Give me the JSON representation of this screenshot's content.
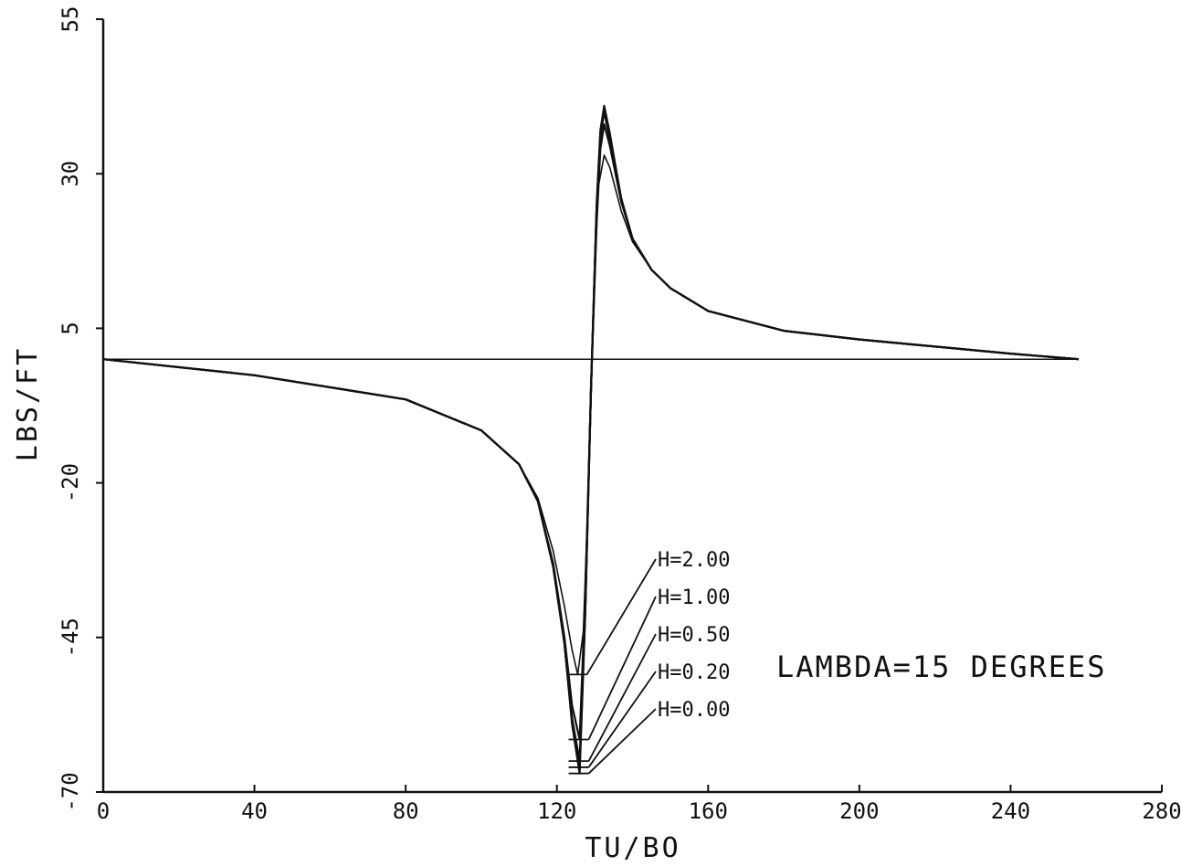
{
  "chart_data": {
    "type": "line",
    "xlabel": "TU/BO",
    "ylabel": "LBS/FT",
    "xlim": [
      0,
      280
    ],
    "ylim": [
      -70,
      55
    ],
    "xticks": [
      0,
      40,
      80,
      120,
      160,
      200,
      240,
      280
    ],
    "xtick_labels": [
      "0",
      "40",
      "80",
      "120",
      "160",
      "200",
      "240",
      "280"
    ],
    "yticks": [
      -70,
      -45,
      -20,
      5,
      30,
      55
    ],
    "ytick_labels": [
      "-70",
      "-45",
      "-20",
      "5",
      "30",
      "55"
    ],
    "annotation": "LAMBDA=15 DEGREES",
    "reference_line_y": 0,
    "grid": false,
    "series": [
      {
        "name": "H=2.00",
        "min_at": 125.5,
        "min_value": -51.0,
        "max_at": 132.5,
        "max_value": 33.0,
        "x": [
          0,
          40,
          80,
          100,
          110,
          115,
          119,
          122,
          124,
          125.5,
          127,
          128.5,
          130,
          131,
          132.5,
          134,
          137,
          140,
          145,
          150,
          160,
          180,
          200,
          240,
          258
        ],
        "y": [
          0,
          -2.6,
          -6.5,
          -11.5,
          -17,
          -22.5,
          -31,
          -40,
          -47,
          -51,
          -44,
          -18,
          15,
          28,
          33,
          31,
          24,
          19,
          14.5,
          11.5,
          7.8,
          4.6,
          3.2,
          0.9,
          0
        ]
      },
      {
        "name": "H=1.00",
        "min_at": 126.0,
        "min_value": -61.5,
        "max_at": 132.5,
        "max_value": 38.0,
        "x": [
          0,
          40,
          80,
          100,
          110,
          115,
          119,
          122,
          124,
          126,
          127.5,
          129,
          130.5,
          131.5,
          132.5,
          134,
          137,
          140,
          145,
          150,
          160,
          180,
          200,
          240,
          258
        ],
        "y": [
          0,
          -2.6,
          -6.5,
          -11.5,
          -17,
          -23,
          -33,
          -45,
          -56,
          -61.5,
          -38,
          -5,
          22,
          34,
          38,
          34.5,
          25.5,
          19.5,
          14.5,
          11.5,
          7.8,
          4.6,
          3.2,
          0.9,
          0
        ]
      },
      {
        "name": "H=0.50",
        "min_at": 126.0,
        "min_value": -65.0,
        "max_at": 132.5,
        "max_value": 40.0,
        "x": [
          0,
          40,
          80,
          100,
          110,
          115,
          119,
          122,
          124,
          126,
          127.5,
          129,
          130.5,
          131.5,
          132.5,
          134,
          137,
          140,
          145,
          150,
          160,
          180,
          200,
          240,
          258
        ],
        "y": [
          0,
          -2.6,
          -6.5,
          -11.5,
          -17,
          -23,
          -33.5,
          -46,
          -58,
          -65,
          -40,
          -5,
          24,
          36,
          40,
          35.5,
          26,
          19.5,
          14.5,
          11.5,
          7.8,
          4.6,
          3.2,
          0.9,
          0
        ]
      },
      {
        "name": "H=0.20",
        "min_at": 126.0,
        "min_value": -66.0,
        "max_at": 132.5,
        "max_value": 40.5,
        "x": [
          0,
          40,
          80,
          100,
          110,
          115,
          119,
          122,
          124,
          126,
          127.5,
          129,
          130.5,
          131.5,
          132.5,
          134,
          137,
          140,
          145,
          150,
          160,
          180,
          200,
          240,
          258
        ],
        "y": [
          0,
          -2.6,
          -6.5,
          -11.5,
          -17,
          -23,
          -33.5,
          -46,
          -58.5,
          -66,
          -40.5,
          -5,
          24.5,
          36.5,
          40.5,
          36,
          26,
          19.5,
          14.5,
          11.5,
          7.8,
          4.6,
          3.2,
          0.9,
          0
        ]
      },
      {
        "name": "H=0.00",
        "min_at": 126.0,
        "min_value": -67.0,
        "max_at": 132.5,
        "max_value": 41.0,
        "x": [
          0,
          40,
          80,
          100,
          110,
          115,
          119,
          122,
          124,
          126,
          127.5,
          129,
          130.5,
          131.5,
          132.5,
          134,
          137,
          140,
          145,
          150,
          160,
          180,
          200,
          240,
          258
        ],
        "y": [
          0,
          -2.6,
          -6.5,
          -11.5,
          -17,
          -23,
          -33.5,
          -46,
          -59,
          -67,
          -41,
          -5,
          25,
          37,
          41,
          36.5,
          26,
          19.5,
          14.5,
          11.5,
          7.8,
          4.6,
          3.2,
          0.9,
          0
        ]
      }
    ]
  }
}
